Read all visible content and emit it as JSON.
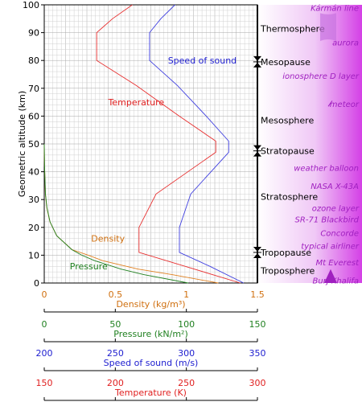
{
  "chart_data": {
    "type": "line",
    "ylabel": "Geometric altitude (km)",
    "ylim": [
      0,
      100
    ],
    "y_ticks": [
      0,
      10,
      20,
      30,
      40,
      50,
      60,
      70,
      80,
      90,
      100
    ],
    "grid": true,
    "series": [
      {
        "name": "Temperature",
        "color": "#e83030",
        "axis": "temperature",
        "points": [
          [
            288,
            0
          ],
          [
            249,
            6
          ],
          [
            216.7,
            11
          ],
          [
            216.7,
            20
          ],
          [
            228.7,
            32
          ],
          [
            270.7,
            47
          ],
          [
            270.7,
            51
          ],
          [
            245,
            60
          ],
          [
            214.7,
            71
          ],
          [
            186.9,
            80
          ],
          [
            186.9,
            90
          ],
          [
            198,
            95
          ],
          [
            212,
            100
          ]
        ]
      },
      {
        "name": "Speed of sound",
        "color": "#4040e0",
        "axis": "speed",
        "points": [
          [
            340.3,
            0
          ],
          [
            316.5,
            6
          ],
          [
            295.1,
            11
          ],
          [
            295.1,
            20
          ],
          [
            303.1,
            32
          ],
          [
            329.8,
            47
          ],
          [
            329.8,
            51
          ],
          [
            314,
            60
          ],
          [
            293.7,
            71
          ],
          [
            274.1,
            80
          ],
          [
            274.1,
            90
          ],
          [
            282,
            95
          ],
          [
            292,
            100
          ]
        ]
      },
      {
        "name": "Density",
        "color": "#e08020",
        "axis": "density",
        "points": [
          [
            1.225,
            0
          ],
          [
            0.9,
            3
          ],
          [
            0.66,
            5
          ],
          [
            0.413,
            8
          ],
          [
            0.31,
            10
          ],
          [
            0.195,
            12
          ],
          [
            0.088,
            17
          ],
          [
            0.04,
            22
          ],
          [
            0.018,
            27
          ],
          [
            0.008,
            32
          ],
          [
            0.002,
            42
          ],
          [
            0.0,
            50
          ]
        ]
      },
      {
        "name": "Pressure",
        "color": "#208020",
        "axis": "pressure",
        "points": [
          [
            101.3,
            0
          ],
          [
            70.1,
            3
          ],
          [
            54,
            5
          ],
          [
            35.6,
            8
          ],
          [
            26.4,
            10
          ],
          [
            19.4,
            12
          ],
          [
            8.8,
            17
          ],
          [
            4.05,
            22
          ],
          [
            1.9,
            27
          ],
          [
            0.87,
            32
          ],
          [
            0.2,
            42
          ],
          [
            0.0,
            50
          ]
        ]
      }
    ],
    "axes": [
      {
        "id": "density",
        "label": "Density (kg/m³)",
        "min": 0,
        "max": 1.5,
        "color": "#d07010",
        "ticks": [
          0,
          0.5,
          1,
          1.5
        ],
        "tick_labels": [
          "0",
          "0.5",
          "1",
          "1.5"
        ]
      },
      {
        "id": "pressure",
        "label": "Pressure (kN/m²)",
        "min": 0,
        "max": 150,
        "color": "#208020",
        "ticks": [
          0,
          50,
          100,
          150
        ],
        "tick_labels": [
          "0",
          "50",
          "100",
          "150"
        ]
      },
      {
        "id": "speed",
        "label": "Speed of sound (m/s)",
        "min": 200,
        "max": 350,
        "color": "#2020d0",
        "ticks": [
          200,
          250,
          300,
          350
        ],
        "tick_labels": [
          "200",
          "250",
          "300",
          "350"
        ]
      },
      {
        "id": "temperature",
        "label": "Temperature (K)",
        "min": 150,
        "max": 300,
        "color": "#e02020",
        "ticks": [
          150,
          200,
          250,
          300
        ],
        "tick_labels": [
          "150",
          "200",
          "250",
          "300"
        ]
      }
    ],
    "annotations": [
      {
        "text": "Speed of sound",
        "color": "#2020d0",
        "x_axis": "speed",
        "x": 287,
        "y": 80
      },
      {
        "text": "Temperature",
        "color": "#e02020",
        "x_axis": "temperature",
        "x": 195,
        "y": 65
      },
      {
        "text": "Density",
        "color": "#d07010",
        "x_axis": "density",
        "x": 0.33,
        "y": 16
      },
      {
        "text": "Pressure",
        "color": "#208020",
        "x_axis": "density",
        "x": 0.18,
        "y": 6
      }
    ],
    "layers": [
      {
        "text": "Thermosphere",
        "y": 91.5
      },
      {
        "text": "Mesopause",
        "y": 79.5,
        "boundary": true
      },
      {
        "text": "Mesosphere",
        "y": 58.5
      },
      {
        "text": "Stratopause",
        "y": 47.5,
        "boundary": true
      },
      {
        "text": "Stratosphere",
        "y": 31
      },
      {
        "text": "Tropopause",
        "y": 11,
        "boundary": true
      },
      {
        "text": "Troposphere",
        "y": 4.5
      }
    ],
    "features": [
      {
        "text": "Kármán line",
        "y": 99
      },
      {
        "text": "aurora",
        "y": 86.5
      },
      {
        "text": "ionosphere D layer",
        "y": 74.5
      },
      {
        "text": "meteor",
        "y": 64.5
      },
      {
        "text": "weather balloon",
        "y": 41.5
      },
      {
        "text": "NASA X-43A",
        "y": 35
      },
      {
        "text": "ozone layer",
        "y": 27
      },
      {
        "text": "SR-71 Blackbird",
        "y": 23
      },
      {
        "text": "Concorde",
        "y": 18
      },
      {
        "text": "typical airliner",
        "y": 13.5
      },
      {
        "text": "Mt Everest",
        "y": 7.5
      },
      {
        "text": "Burj Khalifa",
        "y": 1
      }
    ],
    "colors": {
      "feature_text": "#a020c0",
      "band_gradient": [
        "#ffffff",
        "#d840e8"
      ],
      "grid_minor": "#d0d0d0",
      "grid_major": "#a8a8a8"
    }
  }
}
